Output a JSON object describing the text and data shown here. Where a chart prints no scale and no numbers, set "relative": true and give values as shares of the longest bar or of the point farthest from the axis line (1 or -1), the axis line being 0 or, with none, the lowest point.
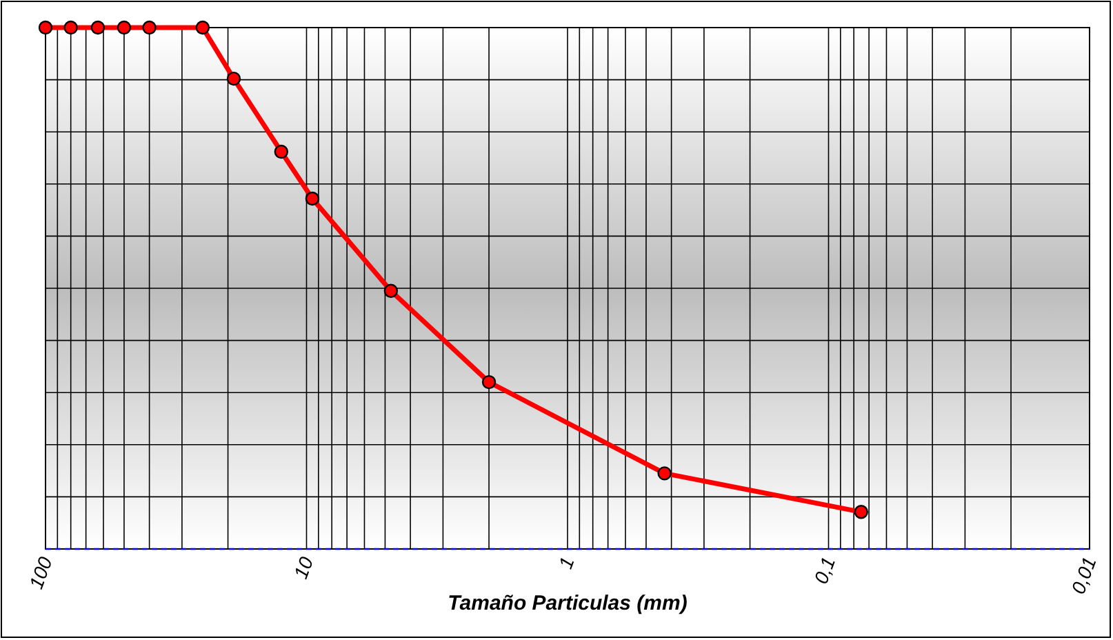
{
  "chart_data": {
    "type": "line",
    "xlabel": "Tamaño Particulas (mm)",
    "log": "x",
    "relative": true,
    "grid": true,
    "marker": "circle",
    "line_style": "solid",
    "xlim": [
      100,
      0.01
    ],
    "xticks": [
      100,
      10,
      1,
      {
        "value": 0.1,
        "label": "0,1"
      },
      {
        "value": 0.01,
        "label": "0,01"
      }
    ],
    "series": [
      {
        "color": "#ff0000",
        "x": [
          100,
          80,
          63,
          50,
          40,
          25,
          19,
          12.5,
          9.5,
          4.75,
          2,
          0.425,
          0.075
        ],
        "values": [
          1,
          1,
          1,
          1,
          1,
          1,
          0.902,
          0.762,
          0.672,
          0.495,
          0.32,
          0.145,
          0.071
        ]
      }
    ]
  }
}
